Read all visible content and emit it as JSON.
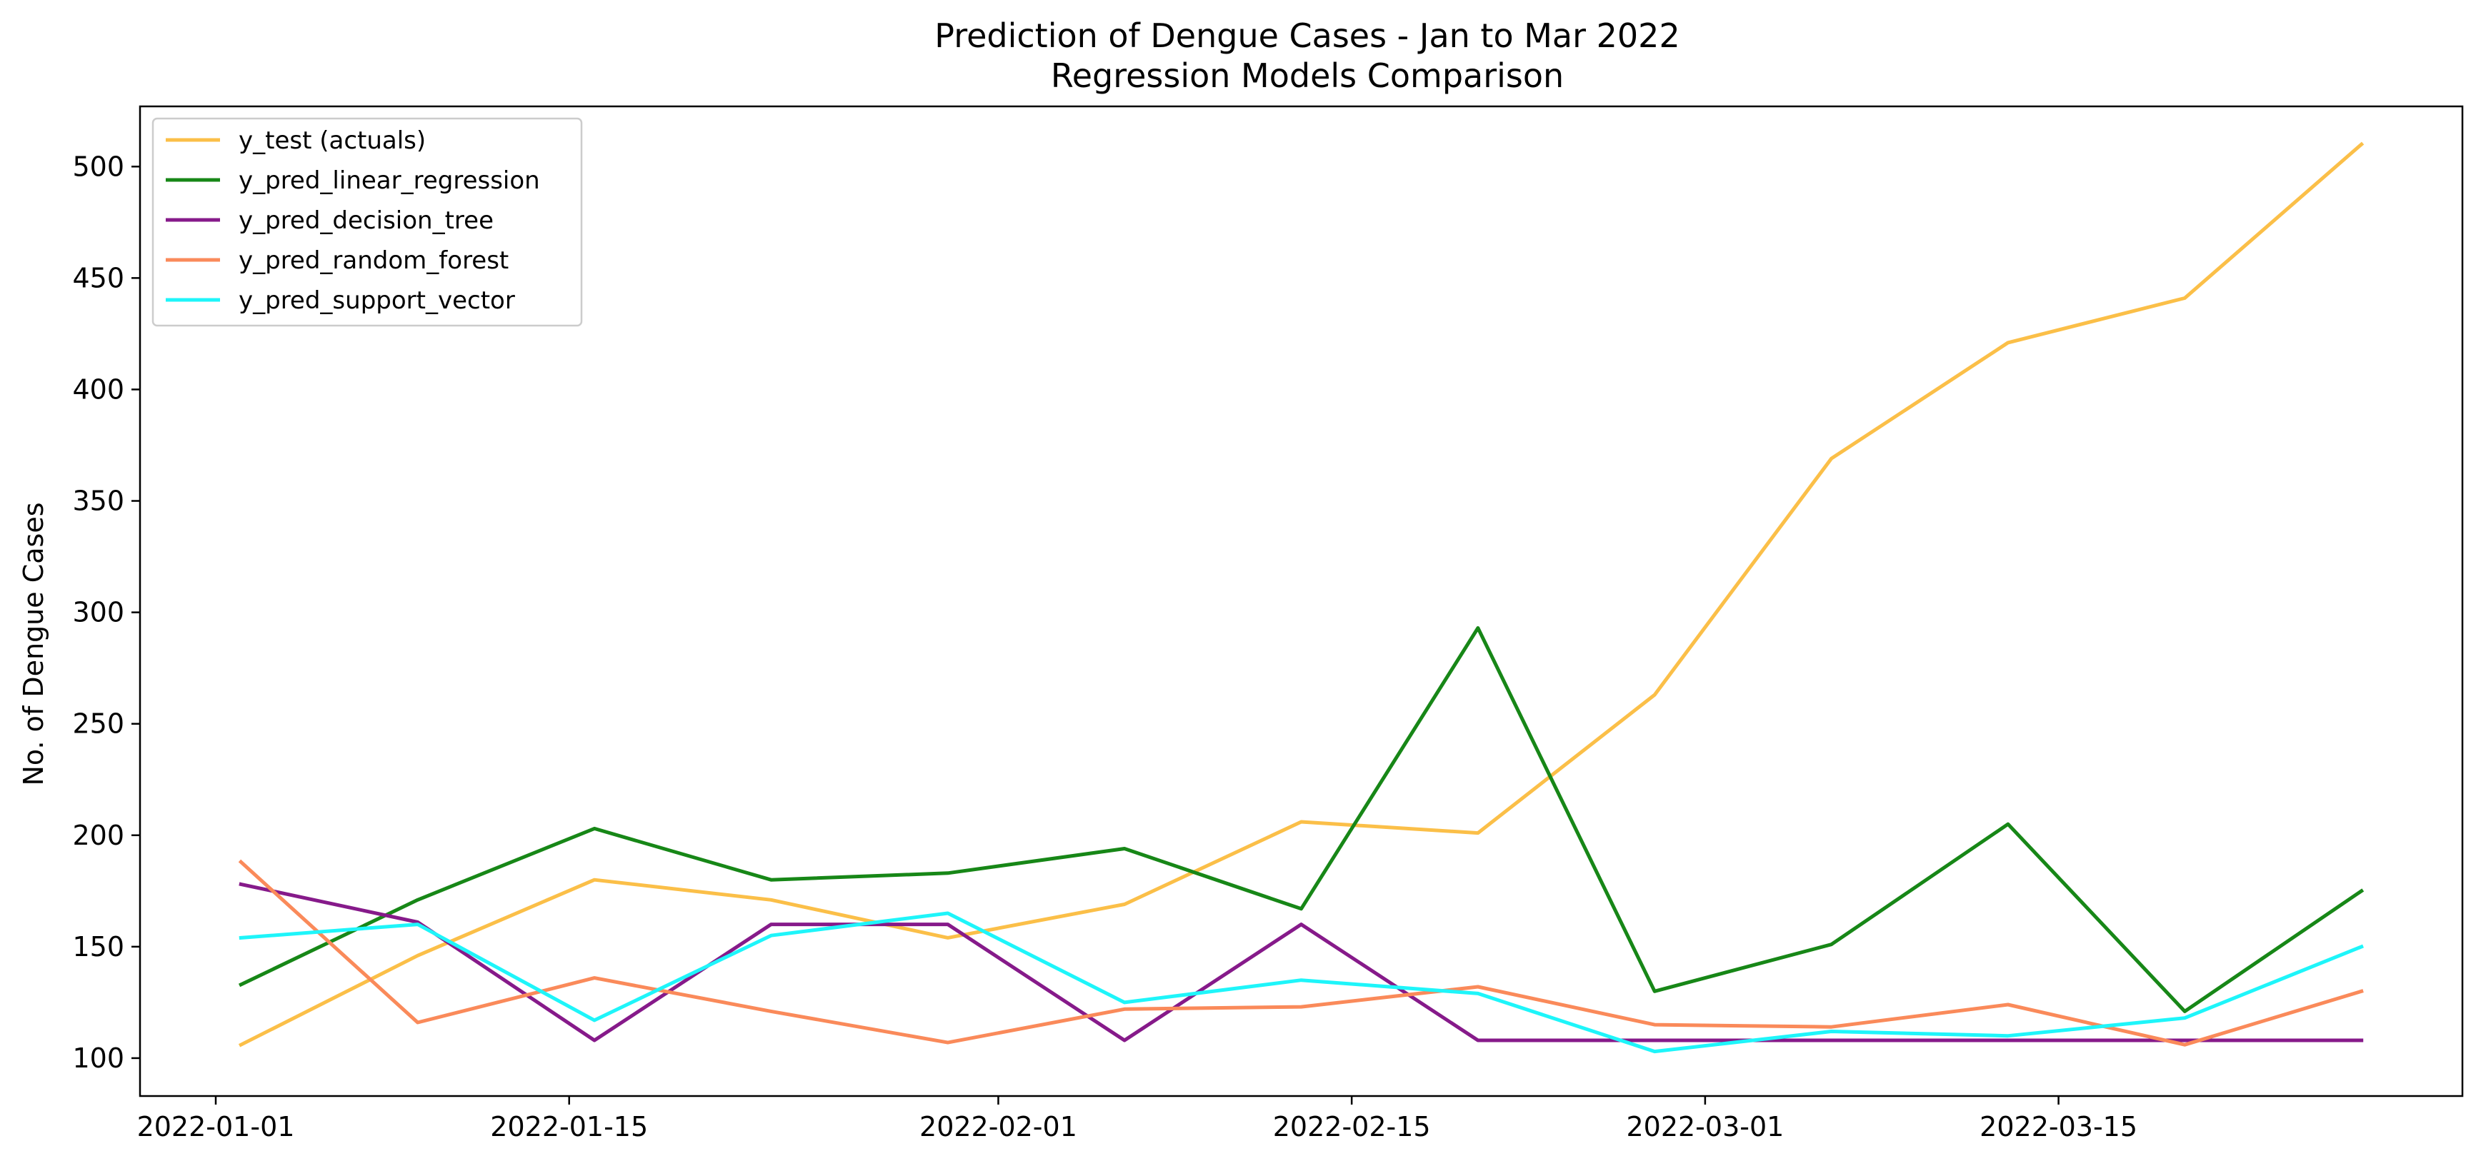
{
  "chart_data": {
    "type": "line",
    "title": "Prediction of Dengue Cases - Jan to Mar 2022",
    "subtitle": "Regression Models Comparison",
    "xlabel": "",
    "ylabel": "No. of Dengue Cases",
    "x": [
      "2022-01-02",
      "2022-01-09",
      "2022-01-16",
      "2022-01-23",
      "2022-01-30",
      "2022-02-06",
      "2022-02-13",
      "2022-02-20",
      "2022-02-27",
      "2022-03-06",
      "2022-03-13",
      "2022-03-20",
      "2022-03-27"
    ],
    "xlim": [
      "2021-12-29",
      "2022-03-31"
    ],
    "ylim": [
      83,
      527
    ],
    "x_ticks": [
      "2022-01-01",
      "2022-01-15",
      "2022-02-01",
      "2022-02-15",
      "2022-03-01",
      "2022-03-15"
    ],
    "y_ticks": [
      100,
      150,
      200,
      250,
      300,
      350,
      400,
      450,
      500
    ],
    "grid": false,
    "legend_position": "top-left",
    "series": [
      {
        "name": "y_test (actuals)",
        "color": "#fbbf48",
        "values": [
          106,
          146,
          180,
          171,
          154,
          169,
          206,
          201,
          263,
          369,
          421,
          441,
          510
        ]
      },
      {
        "name": "y_pred_linear_regression",
        "color": "#178717",
        "values": [
          133,
          171,
          203,
          180,
          183,
          194,
          167,
          293,
          130,
          151,
          205,
          121,
          175
        ]
      },
      {
        "name": "y_pred_decision_tree",
        "color": "#861a8a",
        "values": [
          178,
          161,
          108,
          160,
          160,
          108,
          160,
          108,
          108,
          108,
          108,
          108,
          108
        ]
      },
      {
        "name": "y_pred_random_forest",
        "color": "#fa8a5a",
        "values": [
          188,
          116,
          136,
          121,
          107,
          122,
          123,
          132,
          115,
          114,
          124,
          106,
          130
        ]
      },
      {
        "name": "y_pred_support_vector",
        "color": "#1ef5fa",
        "values": [
          154,
          160,
          117,
          155,
          165,
          125,
          135,
          129,
          103,
          112,
          110,
          118,
          150
        ]
      }
    ]
  }
}
